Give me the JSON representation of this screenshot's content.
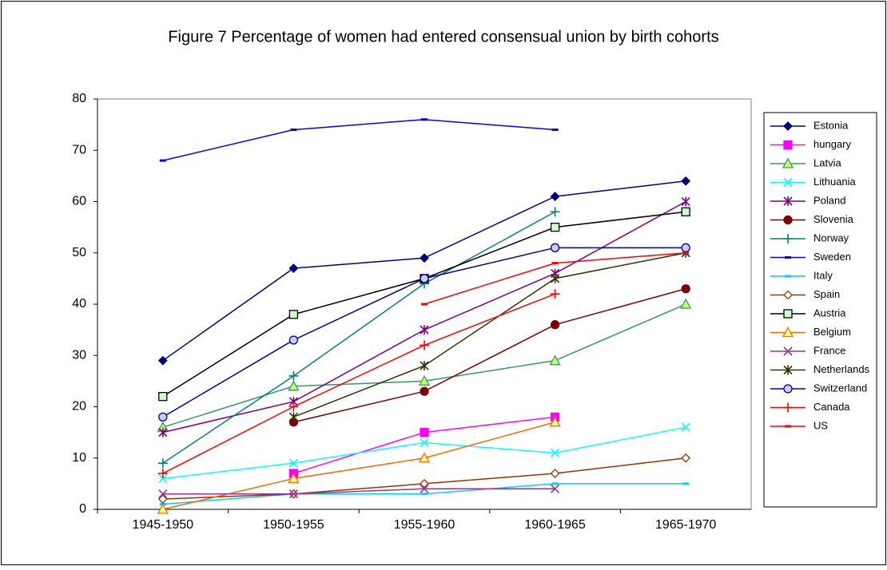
{
  "chart_data": {
    "type": "line",
    "title": "Figure 7 Percentage of women had entered consensual union by birth cohorts",
    "categories": [
      "1945-1950",
      "1950-1955",
      "1955-1960",
      "1960-1965",
      "1965-1970"
    ],
    "ylim": [
      0,
      80
    ],
    "yticks": [
      0,
      10,
      20,
      30,
      40,
      50,
      60,
      70,
      80
    ],
    "grid": true,
    "legend": "right",
    "series": [
      {
        "name": "Estonia",
        "color": "#000080",
        "marker": "diamond",
        "marker_fill": "#000080",
        "values": [
          29,
          47,
          49,
          61,
          64
        ]
      },
      {
        "name": "hungary",
        "color": "#ff00ff",
        "marker": "square",
        "marker_fill": "#ff00ff",
        "values": [
          null,
          7,
          15,
          18,
          null
        ]
      },
      {
        "name": "Latvia",
        "color": "#339966",
        "marker": "triangle",
        "marker_fill": "#ccff66",
        "values": [
          16,
          24,
          25,
          29,
          40
        ]
      },
      {
        "name": "Lithuania",
        "color": "#00ffff",
        "marker": "x",
        "marker_fill": "none",
        "values": [
          6,
          9,
          13,
          11,
          16
        ]
      },
      {
        "name": "Poland",
        "color": "#800080",
        "marker": "star",
        "marker_fill": "none",
        "values": [
          15,
          21,
          35,
          46,
          60
        ]
      },
      {
        "name": "Slovenia",
        "color": "#800000",
        "marker": "circle",
        "marker_fill": "#800000",
        "values": [
          null,
          17,
          23,
          36,
          43
        ]
      },
      {
        "name": "Norway",
        "color": "#008080",
        "marker": "plus",
        "marker_fill": "none",
        "values": [
          9,
          26,
          44,
          58,
          null
        ]
      },
      {
        "name": "Sweden",
        "color": "#0000ff",
        "marker": "dash",
        "marker_fill": "#0000ff",
        "values": [
          68,
          74,
          76,
          74,
          null
        ]
      },
      {
        "name": "Italy",
        "color": "#00ccff",
        "marker": "dash",
        "marker_fill": "#00ccff",
        "values": [
          1,
          3,
          3,
          5,
          5
        ]
      },
      {
        "name": "Spain",
        "color": "#993300",
        "marker": "diamond",
        "marker_fill": "#ffffff",
        "values": [
          2,
          3,
          5,
          7,
          10
        ]
      },
      {
        "name": "Austria",
        "color": "#000000",
        "marker": "square",
        "marker_fill": "#ccffcc",
        "values": [
          22,
          38,
          45,
          55,
          58
        ]
      },
      {
        "name": "Belgium",
        "color": "#ff6600",
        "marker": "triangle",
        "marker_fill": "#ffff99",
        "values": [
          0,
          6,
          10,
          17,
          null
        ]
      },
      {
        "name": "France",
        "color": "#993399",
        "marker": "x",
        "marker_fill": "none",
        "values": [
          3,
          3,
          4,
          4,
          null
        ]
      },
      {
        "name": "Netherlands",
        "color": "#333300",
        "marker": "star",
        "marker_fill": "none",
        "values": [
          null,
          18,
          28,
          45,
          50
        ]
      },
      {
        "name": "Switzerland",
        "color": "#000099",
        "marker": "circle",
        "marker_fill": "#ccccff",
        "values": [
          18,
          33,
          45,
          51,
          51
        ]
      },
      {
        "name": "Canada",
        "color": "#ff0000",
        "marker": "plus",
        "marker_fill": "none",
        "values": [
          7,
          20,
          32,
          42,
          null
        ]
      },
      {
        "name": "US",
        "color": "#ff0000",
        "marker": "dash",
        "marker_fill": "#ff0000",
        "values": [
          null,
          null,
          40,
          48,
          50
        ]
      }
    ]
  }
}
